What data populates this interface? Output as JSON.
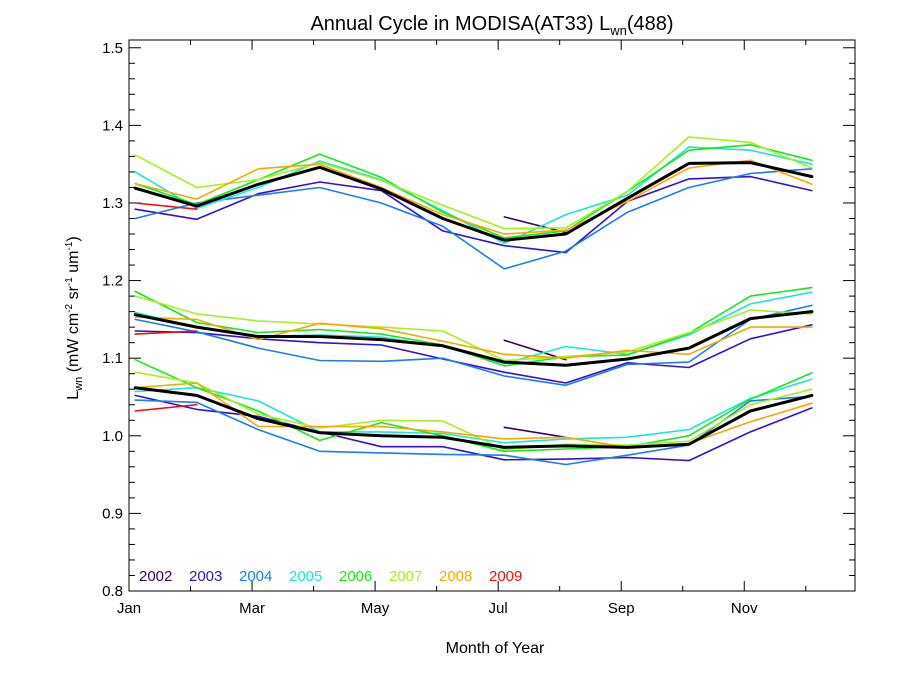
{
  "chart_data": {
    "type": "line",
    "title_main": "Annual Cycle in MODISA(AT33) L",
    "title_sub": "wn",
    "title_suffix": "(488)",
    "xlabel": "Month of Year",
    "ylabel": {
      "main": "L",
      "sub": "wn",
      "units_open": " (mW cm",
      "sup1": "-2",
      "part2": " sr",
      "sup2": "-1",
      "part3": " um",
      "sup3": "-1",
      "units_close": ")"
    },
    "xlim": [
      1,
      12.8
    ],
    "ylim": [
      0.8,
      1.51
    ],
    "xticks": [
      {
        "value": 1,
        "label": "Jan"
      },
      {
        "value": 3,
        "label": "Mar"
      },
      {
        "value": 5,
        "label": "May"
      },
      {
        "value": 7,
        "label": "Jul"
      },
      {
        "value": 9,
        "label": "Sep"
      },
      {
        "value": 11,
        "label": "Nov"
      }
    ],
    "yticks": [
      {
        "value": 0.8,
        "label": "0.8"
      },
      {
        "value": 0.9,
        "label": "0.9"
      },
      {
        "value": 1.0,
        "label": "1.0"
      },
      {
        "value": 1.1,
        "label": "1.1"
      },
      {
        "value": 1.2,
        "label": "1.2"
      },
      {
        "value": 1.3,
        "label": "1.3"
      },
      {
        "value": 1.4,
        "label": "1.4"
      },
      {
        "value": 1.5,
        "label": "1.5"
      }
    ],
    "x": [
      1.1,
      2.1,
      3.1,
      4.1,
      5.1,
      6.1,
      7.1,
      8.1,
      9.1,
      10.1,
      11.1,
      12.1
    ],
    "legend": [
      {
        "label": "2002",
        "color": "#3d0060"
      },
      {
        "label": "2003",
        "color": "#3510d0"
      },
      {
        "label": "2004",
        "color": "#1a7df0"
      },
      {
        "label": "2005",
        "color": "#18e8d8"
      },
      {
        "label": "2006",
        "color": "#18e818"
      },
      {
        "label": "2007",
        "color": "#a6f020"
      },
      {
        "label": "2008",
        "color": "#f5a800"
      },
      {
        "label": "2009",
        "color": "#ee1010"
      }
    ],
    "groups": [
      {
        "series": [
          {
            "name": "2002",
            "color": "#3d0060",
            "values": [
              null,
              null,
              null,
              null,
              null,
              null,
              1.282,
              1.262,
              null,
              null,
              null,
              null
            ]
          },
          {
            "name": "2003",
            "color": "#3510d0",
            "values": [
              1.292,
              1.279,
              1.312,
              1.327,
              1.316,
              1.264,
              1.245,
              1.236,
              1.302,
              1.331,
              1.334,
              1.316
            ]
          },
          {
            "name": "2004",
            "color": "#1a7df0",
            "values": [
              1.28,
              1.3,
              1.31,
              1.32,
              1.3,
              1.27,
              1.215,
              1.238,
              1.288,
              1.32,
              1.338,
              1.344
            ]
          },
          {
            "name": "2005",
            "color": "#18e8d8",
            "values": [
              1.34,
              1.293,
              1.32,
              1.354,
              1.33,
              1.29,
              1.248,
              1.285,
              1.31,
              1.372,
              1.368,
              1.35
            ]
          },
          {
            "name": "2006",
            "color": "#18e818",
            "values": [
              1.325,
              1.298,
              1.33,
              1.363,
              1.333,
              1.288,
              1.255,
              1.264,
              1.315,
              1.368,
              1.375,
              1.355
            ]
          },
          {
            "name": "2007",
            "color": "#a6f020",
            "values": [
              1.362,
              1.32,
              1.33,
              1.352,
              1.329,
              1.297,
              1.267,
              1.268,
              1.315,
              1.385,
              1.378,
              1.345
            ]
          },
          {
            "name": "2008",
            "color": "#f5a800",
            "values": [
              1.325,
              1.305,
              1.344,
              1.35,
              1.32,
              1.285,
              1.26,
              1.265,
              1.302,
              1.345,
              1.355,
              1.324
            ]
          },
          {
            "name": "2009",
            "color": "#ee1010",
            "values": [
              1.3,
              1.292,
              null,
              null,
              null,
              null,
              null,
              null,
              null,
              null,
              null,
              null
            ]
          },
          {
            "name": "Mean",
            "color": "#000000",
            "mean": true,
            "values": [
              1.319,
              1.296,
              1.324,
              1.346,
              1.318,
              1.28,
              1.252,
              1.26,
              1.306,
              1.351,
              1.352,
              1.334
            ]
          }
        ]
      },
      {
        "series": [
          {
            "name": "2002",
            "color": "#3d0060",
            "values": [
              null,
              null,
              null,
              null,
              null,
              null,
              1.123,
              1.098,
              null,
              null,
              null,
              null
            ]
          },
          {
            "name": "2003",
            "color": "#3510d0",
            "values": [
              1.135,
              1.133,
              1.125,
              1.12,
              1.117,
              1.099,
              1.082,
              1.068,
              1.094,
              1.088,
              1.125,
              1.143
            ]
          },
          {
            "name": "2004",
            "color": "#1a7df0",
            "values": [
              1.15,
              1.134,
              1.113,
              1.097,
              1.096,
              1.1,
              1.077,
              1.065,
              1.092,
              1.095,
              1.15,
              1.168
            ]
          },
          {
            "name": "2005",
            "color": "#18e8d8",
            "values": [
              1.159,
              1.14,
              1.128,
              1.13,
              1.127,
              1.115,
              1.093,
              1.115,
              1.105,
              1.13,
              1.17,
              1.185
            ]
          },
          {
            "name": "2006",
            "color": "#18e818",
            "values": [
              1.186,
              1.146,
              1.133,
              1.137,
              1.131,
              1.117,
              1.09,
              1.102,
              1.104,
              1.132,
              1.18,
              1.191
            ]
          },
          {
            "name": "2007",
            "color": "#a6f020",
            "values": [
              1.18,
              1.157,
              1.148,
              1.144,
              1.14,
              1.135,
              1.097,
              1.102,
              1.108,
              1.133,
              1.162,
              1.157
            ]
          },
          {
            "name": "2008",
            "color": "#f5a800",
            "values": [
              1.153,
              1.15,
              1.124,
              1.145,
              1.138,
              1.122,
              1.105,
              1.1,
              1.11,
              1.105,
              1.14,
              1.14
            ]
          },
          {
            "name": "2009",
            "color": "#ee1010",
            "values": [
              1.131,
              1.135,
              null,
              null,
              null,
              null,
              null,
              null,
              null,
              null,
              null,
              null
            ]
          },
          {
            "name": "Mean",
            "color": "#000000",
            "mean": true,
            "values": [
              1.156,
              1.14,
              1.128,
              1.128,
              1.124,
              1.116,
              1.095,
              1.091,
              1.099,
              1.113,
              1.151,
              1.16
            ]
          }
        ]
      },
      {
        "series": [
          {
            "name": "2002",
            "color": "#3d0060",
            "values": [
              null,
              null,
              null,
              null,
              null,
              null,
              1.011,
              0.998,
              null,
              null,
              null,
              null
            ]
          },
          {
            "name": "2003",
            "color": "#3510d0",
            "values": [
              1.052,
              1.034,
              1.025,
              1.005,
              0.986,
              0.986,
              0.969,
              0.97,
              0.972,
              0.968,
              1.005,
              1.036
            ]
          },
          {
            "name": "2004",
            "color": "#1a7df0",
            "values": [
              1.046,
              1.043,
              1.008,
              0.98,
              0.978,
              0.976,
              0.975,
              0.963,
              0.975,
              0.988,
              1.045,
              1.051
            ]
          },
          {
            "name": "2005",
            "color": "#18e8d8",
            "values": [
              1.057,
              1.062,
              1.045,
              1.005,
              1.005,
              1.003,
              0.991,
              0.996,
              0.998,
              1.008,
              1.048,
              1.073
            ]
          },
          {
            "name": "2006",
            "color": "#18e818",
            "values": [
              1.098,
              1.062,
              1.032,
              0.994,
              1.017,
              1.0,
              0.98,
              0.983,
              0.986,
              1.0,
              1.047,
              1.081
            ]
          },
          {
            "name": "2007",
            "color": "#a6f020",
            "values": [
              1.082,
              1.068,
              1.028,
              1.01,
              1.02,
              1.019,
              0.982,
              0.989,
              0.988,
              0.993,
              1.04,
              1.06
            ]
          },
          {
            "name": "2008",
            "color": "#f5a800",
            "values": [
              1.062,
              1.068,
              1.012,
              1.012,
              1.012,
              1.005,
              0.996,
              0.998,
              0.985,
              0.99,
              1.018,
              1.042
            ]
          },
          {
            "name": "2009",
            "color": "#ee1010",
            "values": [
              1.032,
              1.04,
              null,
              null,
              null,
              null,
              null,
              null,
              null,
              null,
              null,
              null
            ]
          },
          {
            "name": "Mean",
            "color": "#000000",
            "mean": true,
            "values": [
              1.062,
              1.052,
              1.022,
              1.004,
              1.0,
              0.998,
              0.985,
              0.987,
              0.985,
              0.989,
              1.032,
              1.052
            ]
          }
        ]
      }
    ]
  }
}
